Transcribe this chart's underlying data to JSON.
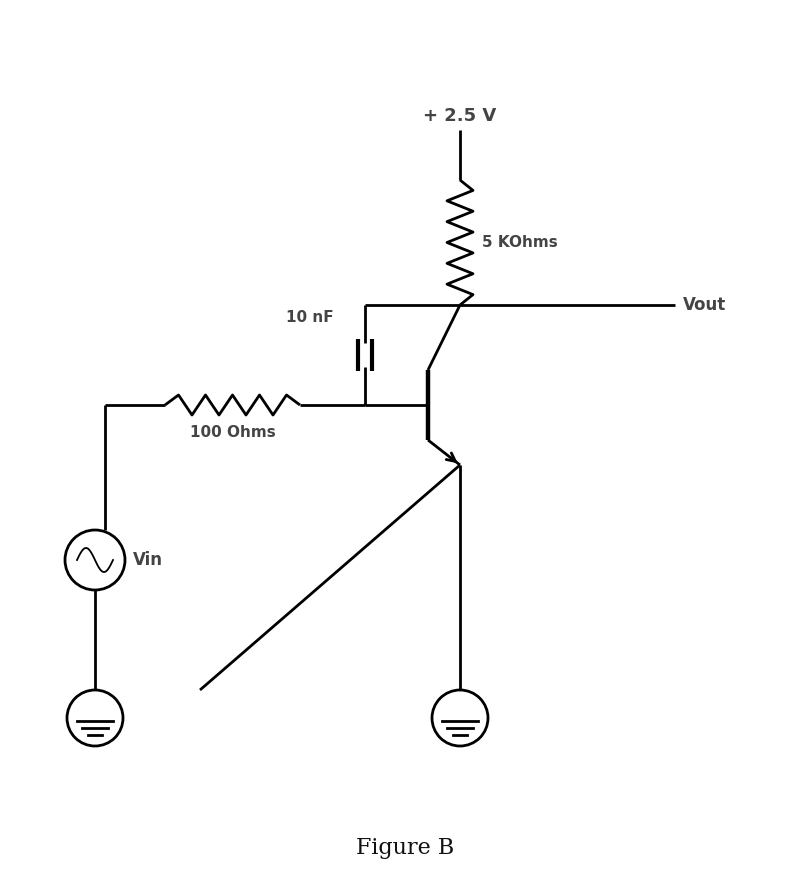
{
  "title": "Figure B",
  "title_fontsize": 16,
  "background_color": "#ffffff",
  "line_color": "#000000",
  "text_color": "#444444",
  "labels": {
    "vcc": "+ 2.5 V",
    "rc": "5 KOhms",
    "cap": "10 nF",
    "rb": "100 Ohms",
    "vin": "Vin",
    "vout": "Vout"
  },
  "fig_width": 8.1,
  "fig_height": 8.9,
  "xlim": [
    0,
    8.1
  ],
  "ylim": [
    0,
    8.9
  ]
}
